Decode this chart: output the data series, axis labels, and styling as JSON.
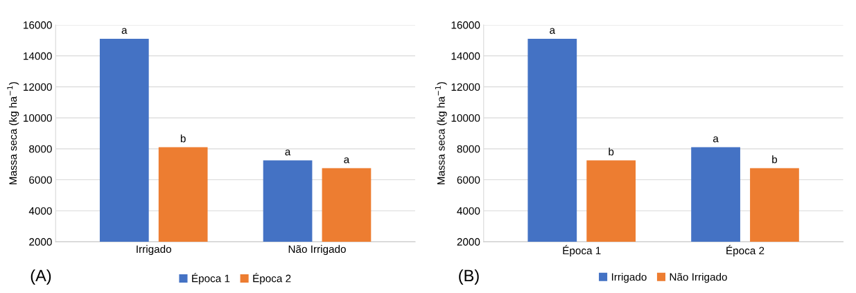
{
  "chart_data": [
    {
      "type": "bar",
      "categories": [
        "Irrigado",
        "Não Irrigado"
      ],
      "ylabel": "Massa seca (kg ha$^{−1}$)",
      "ylim": [
        2000,
        16000
      ],
      "yticks": [
        2000,
        4000,
        6000,
        8000,
        10000,
        12000,
        14000,
        16000
      ],
      "grid": "y",
      "legend": "bottom",
      "annotations": [
        "(A)"
      ],
      "series": [
        {
          "name": "Época 1",
          "color": "#4472c4",
          "values": [
            15100,
            7250
          ],
          "value_labels": [
            "a",
            "a"
          ]
        },
        {
          "name": "Época 2",
          "color": "#ed7d31",
          "values": [
            8100,
            6750
          ],
          "value_labels": [
            "b",
            "a"
          ]
        }
      ]
    },
    {
      "type": "bar",
      "categories": [
        "Época 1",
        "Época 2"
      ],
      "ylabel": "Massa seca (kg ha$^{−1}$)",
      "ylim": [
        2000,
        16000
      ],
      "yticks": [
        2000,
        4000,
        6000,
        8000,
        10000,
        12000,
        14000,
        16000
      ],
      "grid": "y",
      "legend": "bottom",
      "annotations": [
        "(B)"
      ],
      "series": [
        {
          "name": "Irrigado",
          "color": "#4472c4",
          "values": [
            15100,
            8100
          ],
          "value_labels": [
            "a",
            "a"
          ]
        },
        {
          "name": "Não Irrigado",
          "color": "#ed7d31",
          "values": [
            7250,
            6750
          ],
          "value_labels": [
            "b",
            "b"
          ]
        }
      ]
    }
  ]
}
